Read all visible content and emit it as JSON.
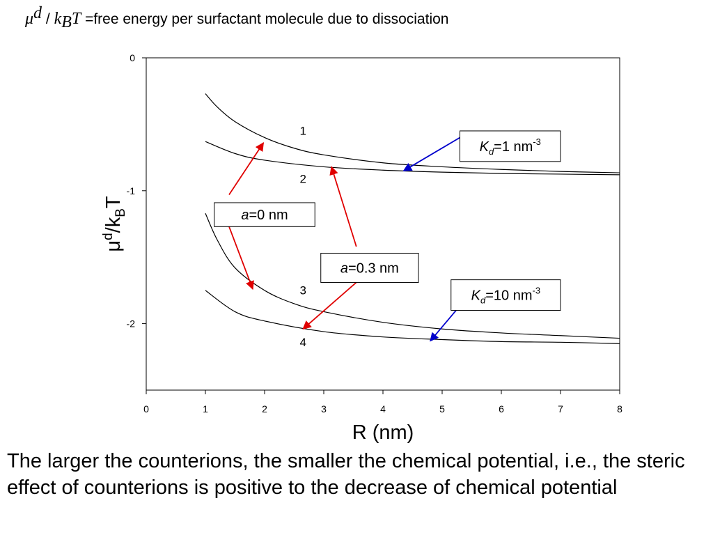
{
  "header": {
    "symbol_mu": "μ",
    "symbol_d": "d",
    "slash": " / ",
    "symbol_k": "k",
    "symbol_B": "B",
    "symbol_T": "T",
    "text": " =free energy per surfactant molecule due to dissociation"
  },
  "caption": "The larger the counterions, the smaller the chemical potential, i.e., the steric effect of counterions is positive to the decrease of chemical potential",
  "chart_data": {
    "type": "line",
    "xlabel": "R (nm)",
    "ylabel": "μd/kBT",
    "xlim": [
      0,
      8
    ],
    "ylim": [
      -2.5,
      0
    ],
    "xticks": [
      0,
      1,
      2,
      3,
      4,
      5,
      6,
      7,
      8
    ],
    "yticks": [
      0,
      -1,
      -2
    ],
    "grid": false,
    "series": [
      {
        "name": "1",
        "x": [
          1,
          1.2,
          1.5,
          2,
          2.5,
          3,
          4,
          5,
          6,
          7,
          8
        ],
        "y": [
          -0.27,
          -0.37,
          -0.48,
          -0.6,
          -0.68,
          -0.73,
          -0.79,
          -0.82,
          -0.84,
          -0.855,
          -0.865
        ]
      },
      {
        "name": "2",
        "x": [
          1,
          1.5,
          2,
          3,
          4,
          5,
          6,
          7,
          8
        ],
        "y": [
          -0.63,
          -0.72,
          -0.77,
          -0.82,
          -0.845,
          -0.86,
          -0.87,
          -0.875,
          -0.88
        ]
      },
      {
        "name": "3",
        "x": [
          1,
          1.2,
          1.5,
          2,
          2.5,
          3,
          4,
          5,
          6,
          7,
          8
        ],
        "y": [
          -1.17,
          -1.37,
          -1.58,
          -1.75,
          -1.85,
          -1.91,
          -1.99,
          -2.04,
          -2.07,
          -2.09,
          -2.11
        ]
      },
      {
        "name": "4",
        "x": [
          1,
          1.5,
          2,
          3,
          4,
          5,
          6,
          7,
          8
        ],
        "y": [
          -1.75,
          -1.91,
          -1.98,
          -2.06,
          -2.1,
          -2.12,
          -2.135,
          -2.14,
          -2.15
        ]
      }
    ],
    "curve_labels": [
      {
        "text": "1",
        "x": 2.65,
        "y": -0.58
      },
      {
        "text": "2",
        "x": 2.65,
        "y": -0.94
      },
      {
        "text": "3",
        "x": 2.65,
        "y": -1.78
      },
      {
        "text": "4",
        "x": 2.65,
        "y": -2.17
      }
    ],
    "annotations": [
      {
        "italic": "a",
        "text": "=0 nm",
        "color": "#e00000",
        "x0": 1.15,
        "x1": 2.85,
        "y0": -1.09,
        "y1": -1.27,
        "arrows": [
          {
            "from": [
              1.4,
              -1.03
            ],
            "to": [
              1.98,
              -0.64
            ]
          },
          {
            "from": [
              1.4,
              -1.27
            ],
            "to": [
              1.8,
              -1.74
            ]
          }
        ]
      },
      {
        "italic": "a",
        "text": "=0.3 nm",
        "color": "#e00000",
        "x0": 2.95,
        "x1": 4.6,
        "y0": -1.47,
        "y1": -1.69,
        "arrows": [
          {
            "from": [
              3.55,
              -1.42
            ],
            "to": [
              3.13,
              -0.82
            ]
          },
          {
            "from": [
              3.55,
              -1.69
            ],
            "to": [
              2.65,
              -2.04
            ]
          }
        ]
      },
      {
        "italic": "K",
        "sub": "d",
        "text": "=1 nm",
        "sup": "-3",
        "color": "#0000cc",
        "x0": 5.3,
        "x1": 7.0,
        "y0": -0.55,
        "y1": -0.78,
        "arrows": [
          {
            "from": [
              5.3,
              -0.6
            ],
            "to": [
              4.35,
              -0.85
            ]
          }
        ]
      },
      {
        "italic": "K",
        "sub": "d",
        "text": "=10 nm",
        "sup": "-3",
        "color": "#0000cc",
        "x0": 5.15,
        "x1": 7.0,
        "y0": -1.67,
        "y1": -1.9,
        "arrows": [
          {
            "from": [
              5.35,
              -1.84
            ],
            "to": [
              4.8,
              -2.13
            ]
          }
        ]
      }
    ]
  }
}
